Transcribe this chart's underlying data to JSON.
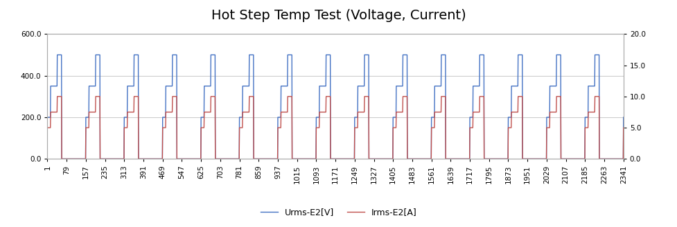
{
  "title": "Hot Step Temp Test (Voltage, Current)",
  "legend_labels": [
    "Urms-E2[V]",
    "Irms-E2[A]"
  ],
  "line_colors": [
    "#4472C4",
    "#C0504D"
  ],
  "left_ylim": [
    0.0,
    600.0
  ],
  "right_ylim": [
    0.0,
    20.0
  ],
  "left_yticks": [
    0.0,
    200.0,
    400.0,
    600.0
  ],
  "right_yticks": [
    0.0,
    5.0,
    10.0,
    15.0,
    20.0
  ],
  "x_tick_labels": [
    "1",
    "79",
    "157",
    "235",
    "313",
    "391",
    "469",
    "547",
    "625",
    "703",
    "781",
    "859",
    "937",
    "1015",
    "1093",
    "1171",
    "1249",
    "1327",
    "1405",
    "1483",
    "1561",
    "1639",
    "1717",
    "1795",
    "1873",
    "1951",
    "2029",
    "2107",
    "2185",
    "2263",
    "2341"
  ],
  "n_points": 2341,
  "background_color": "#FFFFFF",
  "grid_color": "#C8C8C8",
  "title_fontsize": 14,
  "tick_fontsize": 7.5,
  "legend_fontsize": 9,
  "figsize": [
    9.78,
    3.29
  ],
  "dpi": 100
}
